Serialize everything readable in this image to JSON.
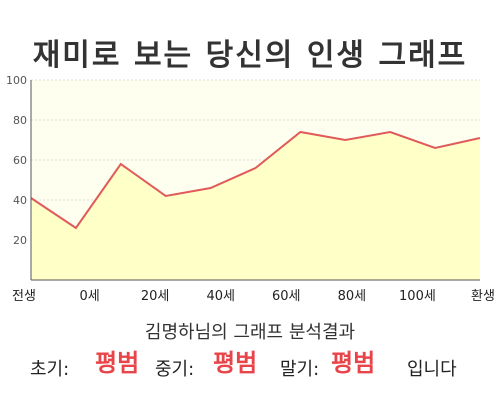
{
  "title": "재미로 보는 당신의 인생 그래프",
  "summary": {
    "heading": "김명하님의 그래프 분석결과",
    "early_label": "초기:",
    "early_value": "평범",
    "mid_label": "중기:",
    "mid_value": "평범",
    "late_label": "말기:",
    "late_value": "평범",
    "ending": "입니다"
  },
  "colors": {
    "line": "#e05a5a",
    "area_fill": "#ffffc8",
    "plot_bg": "#fffff0",
    "accent": "#e8454a"
  },
  "chart_data": {
    "type": "area",
    "title": "",
    "xlabel": "",
    "ylabel": "",
    "ylim": [
      0,
      100
    ],
    "y_ticks": [
      20,
      40,
      60,
      80,
      100
    ],
    "x_ticks": [
      "전생",
      "0세",
      "20세",
      "40세",
      "60세",
      "80세",
      "100세",
      "환생"
    ],
    "grid": true,
    "series": [
      {
        "name": "",
        "values": [
          41,
          26,
          58,
          42,
          46,
          56,
          74,
          70,
          74,
          66,
          71
        ]
      }
    ]
  }
}
